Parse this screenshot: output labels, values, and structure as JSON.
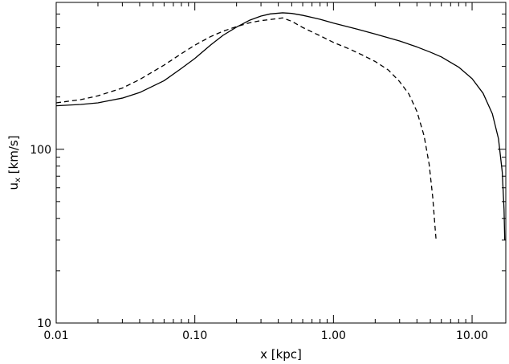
{
  "chart_data": {
    "type": "line",
    "xscale": "log",
    "yscale": "log",
    "xlim": [
      0.01,
      17.5
    ],
    "ylim": [
      10,
      700
    ],
    "xlabel": "x [kpc]",
    "ylabel": {
      "prefix": "u",
      "subscript": "x",
      "suffix": " [km/s]"
    },
    "x_ticks": [
      {
        "value": 0.01,
        "label": "0.01"
      },
      {
        "value": 0.1,
        "label": "0.10"
      },
      {
        "value": 1,
        "label": "1.00"
      },
      {
        "value": 10,
        "label": "10.00"
      }
    ],
    "y_ticks": [
      {
        "value": 10,
        "label": "10"
      },
      {
        "value": 100,
        "label": "100"
      }
    ],
    "grid": false,
    "series": [
      {
        "style": "solid",
        "color": "#000000",
        "x": [
          0.01,
          0.015,
          0.02,
          0.03,
          0.04,
          0.06,
          0.08,
          0.1,
          0.13,
          0.16,
          0.2,
          0.25,
          0.3,
          0.35,
          0.43,
          0.5,
          0.6,
          0.8,
          1.0,
          1.5,
          2.0,
          3.0,
          4.0,
          5.0,
          6.0,
          8.0,
          10.0,
          12.0,
          14.0,
          15.5,
          16.5,
          17.0,
          17.2
        ],
        "y": [
          178,
          181,
          185,
          197,
          212,
          248,
          292,
          333,
          398,
          453,
          505,
          554,
          584,
          601,
          610,
          605,
          590,
          560,
          532,
          490,
          460,
          420,
          388,
          362,
          340,
          297,
          255,
          210,
          160,
          115,
          74,
          45,
          30
        ]
      },
      {
        "style": "dashed",
        "color": "#000000",
        "x": [
          0.01,
          0.015,
          0.02,
          0.03,
          0.04,
          0.06,
          0.08,
          0.1,
          0.13,
          0.16,
          0.2,
          0.25,
          0.3,
          0.35,
          0.43,
          0.5,
          0.6,
          0.8,
          1.0,
          1.3,
          1.6,
          2.0,
          2.5,
          3.0,
          3.5,
          4.0,
          4.5,
          4.9,
          5.2,
          5.4,
          5.5
        ],
        "y": [
          185,
          193,
          203,
          225,
          252,
          305,
          355,
          397,
          445,
          478,
          508,
          535,
          550,
          558,
          570,
          545,
          502,
          450,
          412,
          378,
          350,
          320,
          285,
          245,
          208,
          165,
          120,
          82,
          53,
          36,
          30
        ]
      }
    ]
  }
}
